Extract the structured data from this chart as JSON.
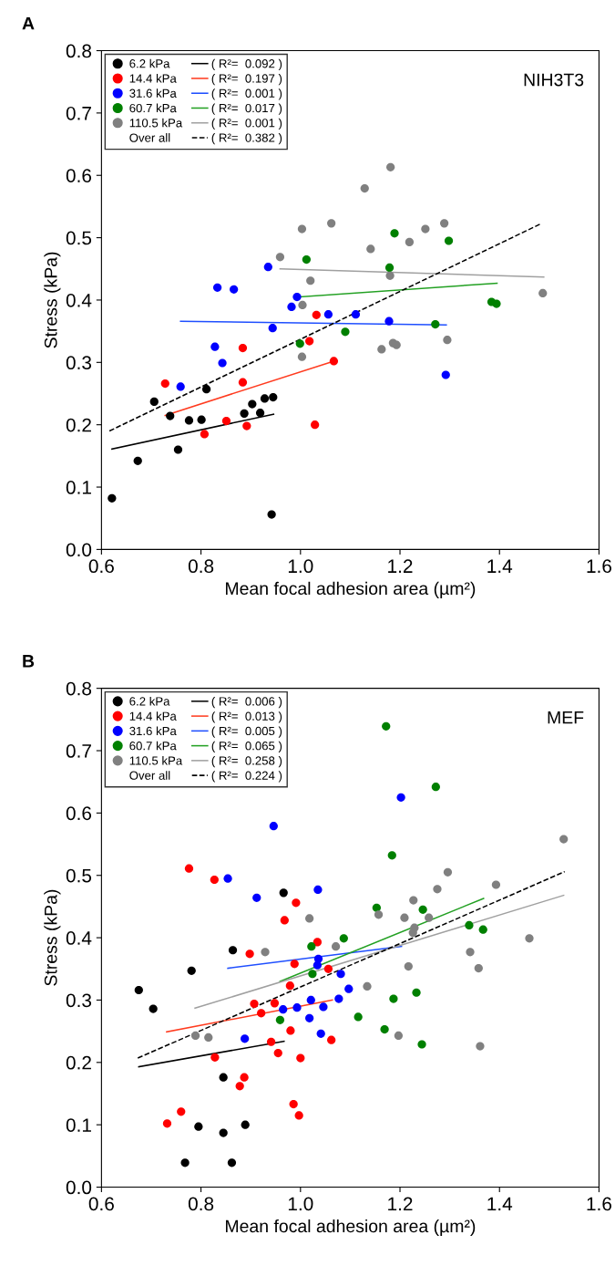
{
  "chart_data": [
    {
      "type": "scatter",
      "title": "A",
      "xlabel": "Mean focal adhesion area (µm²)",
      "ylabel": "Stress (kPa)",
      "annotations": [
        "NIH3T3",
        "Over all"
      ],
      "xlim": [
        0.6,
        1.6
      ],
      "xticks": [
        0.6,
        0.8,
        {
          "value": 1,
          "label": "1.0"
        },
        1.2,
        1.4,
        1.6
      ],
      "ylim": [
        0,
        0.8
      ],
      "yticks": [
        {
          "value": 0,
          "label": "0.0"
        },
        0.1,
        0.2,
        0.3,
        0.4,
        0.5,
        0.6,
        0.7,
        0.8
      ],
      "legend": "top left",
      "grid": false,
      "series": [
        {
          "name": "6.2 kPa",
          "color": "#000000",
          "x": [
            0.621,
            0.673,
            0.706,
            0.738,
            0.754,
            0.776,
            0.801,
            0.811,
            0.887,
            0.903,
            0.919,
            0.928,
            0.945,
            0.942
          ],
          "values": [
            0.082,
            0.142,
            0.237,
            0.214,
            0.16,
            0.207,
            0.208,
            0.257,
            0.218,
            0.233,
            0.219,
            0.242,
            0.244,
            0.056
          ]
        },
        {
          "name": "14.4 kPa",
          "color": "#ff0000",
          "x": [
            0.728,
            0.807,
            0.851,
            0.884,
            0.884,
            0.892,
            1.018,
            1.032,
            1.029,
            1.067
          ],
          "values": [
            0.266,
            0.185,
            0.206,
            0.323,
            0.268,
            0.198,
            0.334,
            0.376,
            0.2,
            0.302
          ]
        },
        {
          "name": "31.6 kPa",
          "color": "#0000ff",
          "x": [
            0.759,
            0.828,
            0.833,
            0.843,
            0.866,
            0.935,
            0.944,
            0.982,
            0.993,
            1.056,
            1.111,
            1.178,
            1.292
          ],
          "values": [
            0.261,
            0.325,
            0.42,
            0.299,
            0.417,
            0.453,
            0.355,
            0.389,
            0.405,
            0.377,
            0.377,
            0.366,
            0.28
          ]
        },
        {
          "name": "60.7 kPa",
          "color": "#008000",
          "x": [
            0.999,
            1.012,
            1.09,
            1.179,
            1.189,
            1.298,
            1.271,
            1.384,
            1.394
          ],
          "values": [
            0.33,
            0.465,
            0.349,
            0.452,
            0.507,
            0.495,
            0.361,
            0.397,
            0.394
          ]
        },
        {
          "name": "110.5 kPa",
          "color": "#808080",
          "x": [
            0.959,
            1.003,
            1.003,
            1.004,
            1.02,
            1.062,
            1.129,
            1.141,
            1.163,
            1.181,
            1.18,
            1.186,
            1.193,
            1.219,
            1.251,
            1.289,
            1.295,
            1.487
          ],
          "values": [
            0.469,
            0.514,
            0.309,
            0.392,
            0.431,
            0.523,
            0.579,
            0.482,
            0.321,
            0.613,
            0.439,
            0.331,
            0.328,
            0.493,
            0.514,
            0.523,
            0.336,
            0.411
          ]
        },
        {
          "type": "line",
          "name": "( R²=  0.092 )",
          "color": "#000000",
          "line_style": "solid",
          "x": [
            0.621,
            0.946
          ],
          "values": [
            0.161,
            0.217
          ]
        },
        {
          "type": "line",
          "name": "( R²=  0.197 )",
          "color": "#ff3b1f",
          "line_style": "solid",
          "x": [
            0.728,
            1.067
          ],
          "values": [
            0.215,
            0.302
          ]
        },
        {
          "type": "line",
          "name": "( R²=  0.001 )",
          "color": "#1f4fff",
          "line_style": "solid",
          "x": [
            0.759,
            1.293
          ],
          "values": [
            0.366,
            0.36
          ]
        },
        {
          "type": "line",
          "name": "( R²=  0.017 )",
          "color": "#22a022",
          "line_style": "solid",
          "x": [
            0.999,
            1.395
          ],
          "values": [
            0.405,
            0.427
          ]
        },
        {
          "type": "line",
          "name": "( R²=  0.001 )",
          "color": "#a0a0a0",
          "line_style": "solid",
          "x": [
            0.959,
            1.489
          ],
          "values": [
            0.45,
            0.437
          ]
        },
        {
          "type": "line",
          "name": "( R²=  0.382 )",
          "color": "#000000",
          "line_style": "dashed",
          "x": [
            0.616,
            1.485
          ],
          "values": [
            0.19,
            0.523
          ]
        }
      ]
    },
    {
      "type": "scatter",
      "title": "B",
      "xlabel": "Mean focal adhesion area (µm²)",
      "ylabel": "Stress (kPa)",
      "annotations": [
        "MEF",
        "Over all"
      ],
      "xlim": [
        0.6,
        1.6
      ],
      "xticks": [
        0.6,
        0.8,
        {
          "value": 1,
          "label": "1.0"
        },
        1.2,
        1.4,
        1.6
      ],
      "ylim": [
        0,
        0.8
      ],
      "yticks": [
        {
          "value": 0,
          "label": "0.0"
        },
        0.1,
        0.2,
        0.3,
        0.4,
        0.5,
        0.6,
        0.7,
        0.8
      ],
      "legend": "top left",
      "grid": false,
      "series": [
        {
          "name": "6.2 kPa",
          "color": "#000000",
          "x": [
            0.675,
            0.704,
            0.781,
            0.864,
            0.845,
            0.795,
            0.845,
            0.889,
            0.768,
            0.862,
            0.966
          ],
          "values": [
            0.316,
            0.286,
            0.347,
            0.38,
            0.176,
            0.097,
            0.087,
            0.1,
            0.039,
            0.039,
            0.472
          ]
        },
        {
          "name": "14.4 kPa",
          "color": "#ff0000",
          "x": [
            0.776,
            0.827,
            0.991,
            0.968,
            1.034,
            0.898,
            0.988,
            0.979,
            1.056,
            0.921,
            0.907,
            0.948,
            0.941,
            0.955,
            0.98,
            1.0,
            1.062,
            0.828,
            0.887,
            0.878,
            0.76,
            0.732,
            0.986,
            0.997
          ],
          "values": [
            0.511,
            0.493,
            0.456,
            0.428,
            0.393,
            0.374,
            0.358,
            0.323,
            0.35,
            0.279,
            0.294,
            0.295,
            0.233,
            0.215,
            0.251,
            0.207,
            0.236,
            0.208,
            0.176,
            0.162,
            0.121,
            0.102,
            0.133,
            0.115
          ]
        },
        {
          "name": "31.6 kPa",
          "color": "#0000ff",
          "x": [
            0.946,
            0.854,
            0.912,
            1.035,
            1.036,
            1.034,
            1.081,
            1.097,
            1.077,
            1.021,
            1.046,
            0.965,
            0.993,
            1.018,
            1.041,
            0.888,
            1.202
          ],
          "values": [
            0.579,
            0.495,
            0.464,
            0.477,
            0.366,
            0.356,
            0.342,
            0.318,
            0.302,
            0.3,
            0.289,
            0.285,
            0.288,
            0.271,
            0.246,
            0.238,
            0.625
          ]
        },
        {
          "name": "60.7 kPa",
          "color": "#008000",
          "x": [
            1.022,
            1.024,
            1.087,
            0.959,
            1.116,
            1.172,
            1.272,
            1.184,
            1.153,
            1.246,
            1.339,
            1.367,
            1.187,
            1.233,
            1.169,
            1.244
          ],
          "values": [
            0.386,
            0.342,
            0.399,
            0.268,
            0.273,
            0.739,
            0.642,
            0.532,
            0.448,
            0.445,
            0.42,
            0.413,
            0.302,
            0.312,
            0.253,
            0.229
          ]
        },
        {
          "name": "110.5 kPa",
          "color": "#808080",
          "x": [
            0.789,
            0.815,
            0.929,
            1.018,
            1.071,
            1.134,
            1.157,
            1.209,
            1.227,
            1.229,
            1.226,
            1.258,
            1.275,
            1.296,
            1.217,
            1.197,
            1.341,
            1.358,
            1.361,
            1.393,
            1.46,
            1.529
          ],
          "values": [
            0.243,
            0.24,
            0.377,
            0.431,
            0.386,
            0.322,
            0.437,
            0.432,
            0.46,
            0.416,
            0.408,
            0.432,
            0.478,
            0.505,
            0.354,
            0.243,
            0.377,
            0.351,
            0.226,
            0.485,
            0.399,
            0.558
          ]
        },
        {
          "type": "line",
          "name": "( R²=  0.006 )",
          "color": "#000000",
          "line_style": "solid",
          "x": [
            0.675,
            0.967
          ],
          "values": [
            0.193,
            0.234
          ]
        },
        {
          "type": "line",
          "name": "( R²=  0.013 )",
          "color": "#ff3b1f",
          "line_style": "solid",
          "x": [
            0.731,
            1.064
          ],
          "values": [
            0.249,
            0.3
          ]
        },
        {
          "type": "line",
          "name": "( R²=  0.005 )",
          "color": "#1f4fff",
          "line_style": "solid",
          "x": [
            0.854,
            1.203
          ],
          "values": [
            0.351,
            0.386
          ]
        },
        {
          "type": "line",
          "name": "( R²=  0.065 )",
          "color": "#22a022",
          "line_style": "solid",
          "x": [
            0.959,
            1.368
          ],
          "values": [
            0.33,
            0.463
          ]
        },
        {
          "type": "line",
          "name": "( R²=  0.258 )",
          "color": "#a0a0a0",
          "line_style": "solid",
          "x": [
            0.788,
            1.529
          ],
          "values": [
            0.287,
            0.468
          ]
        },
        {
          "type": "line",
          "name": "( R²=  0.224 )",
          "color": "#000000",
          "line_style": "dashed",
          "x": [
            0.673,
            1.531
          ],
          "values": [
            0.207,
            0.506
          ]
        }
      ]
    }
  ]
}
